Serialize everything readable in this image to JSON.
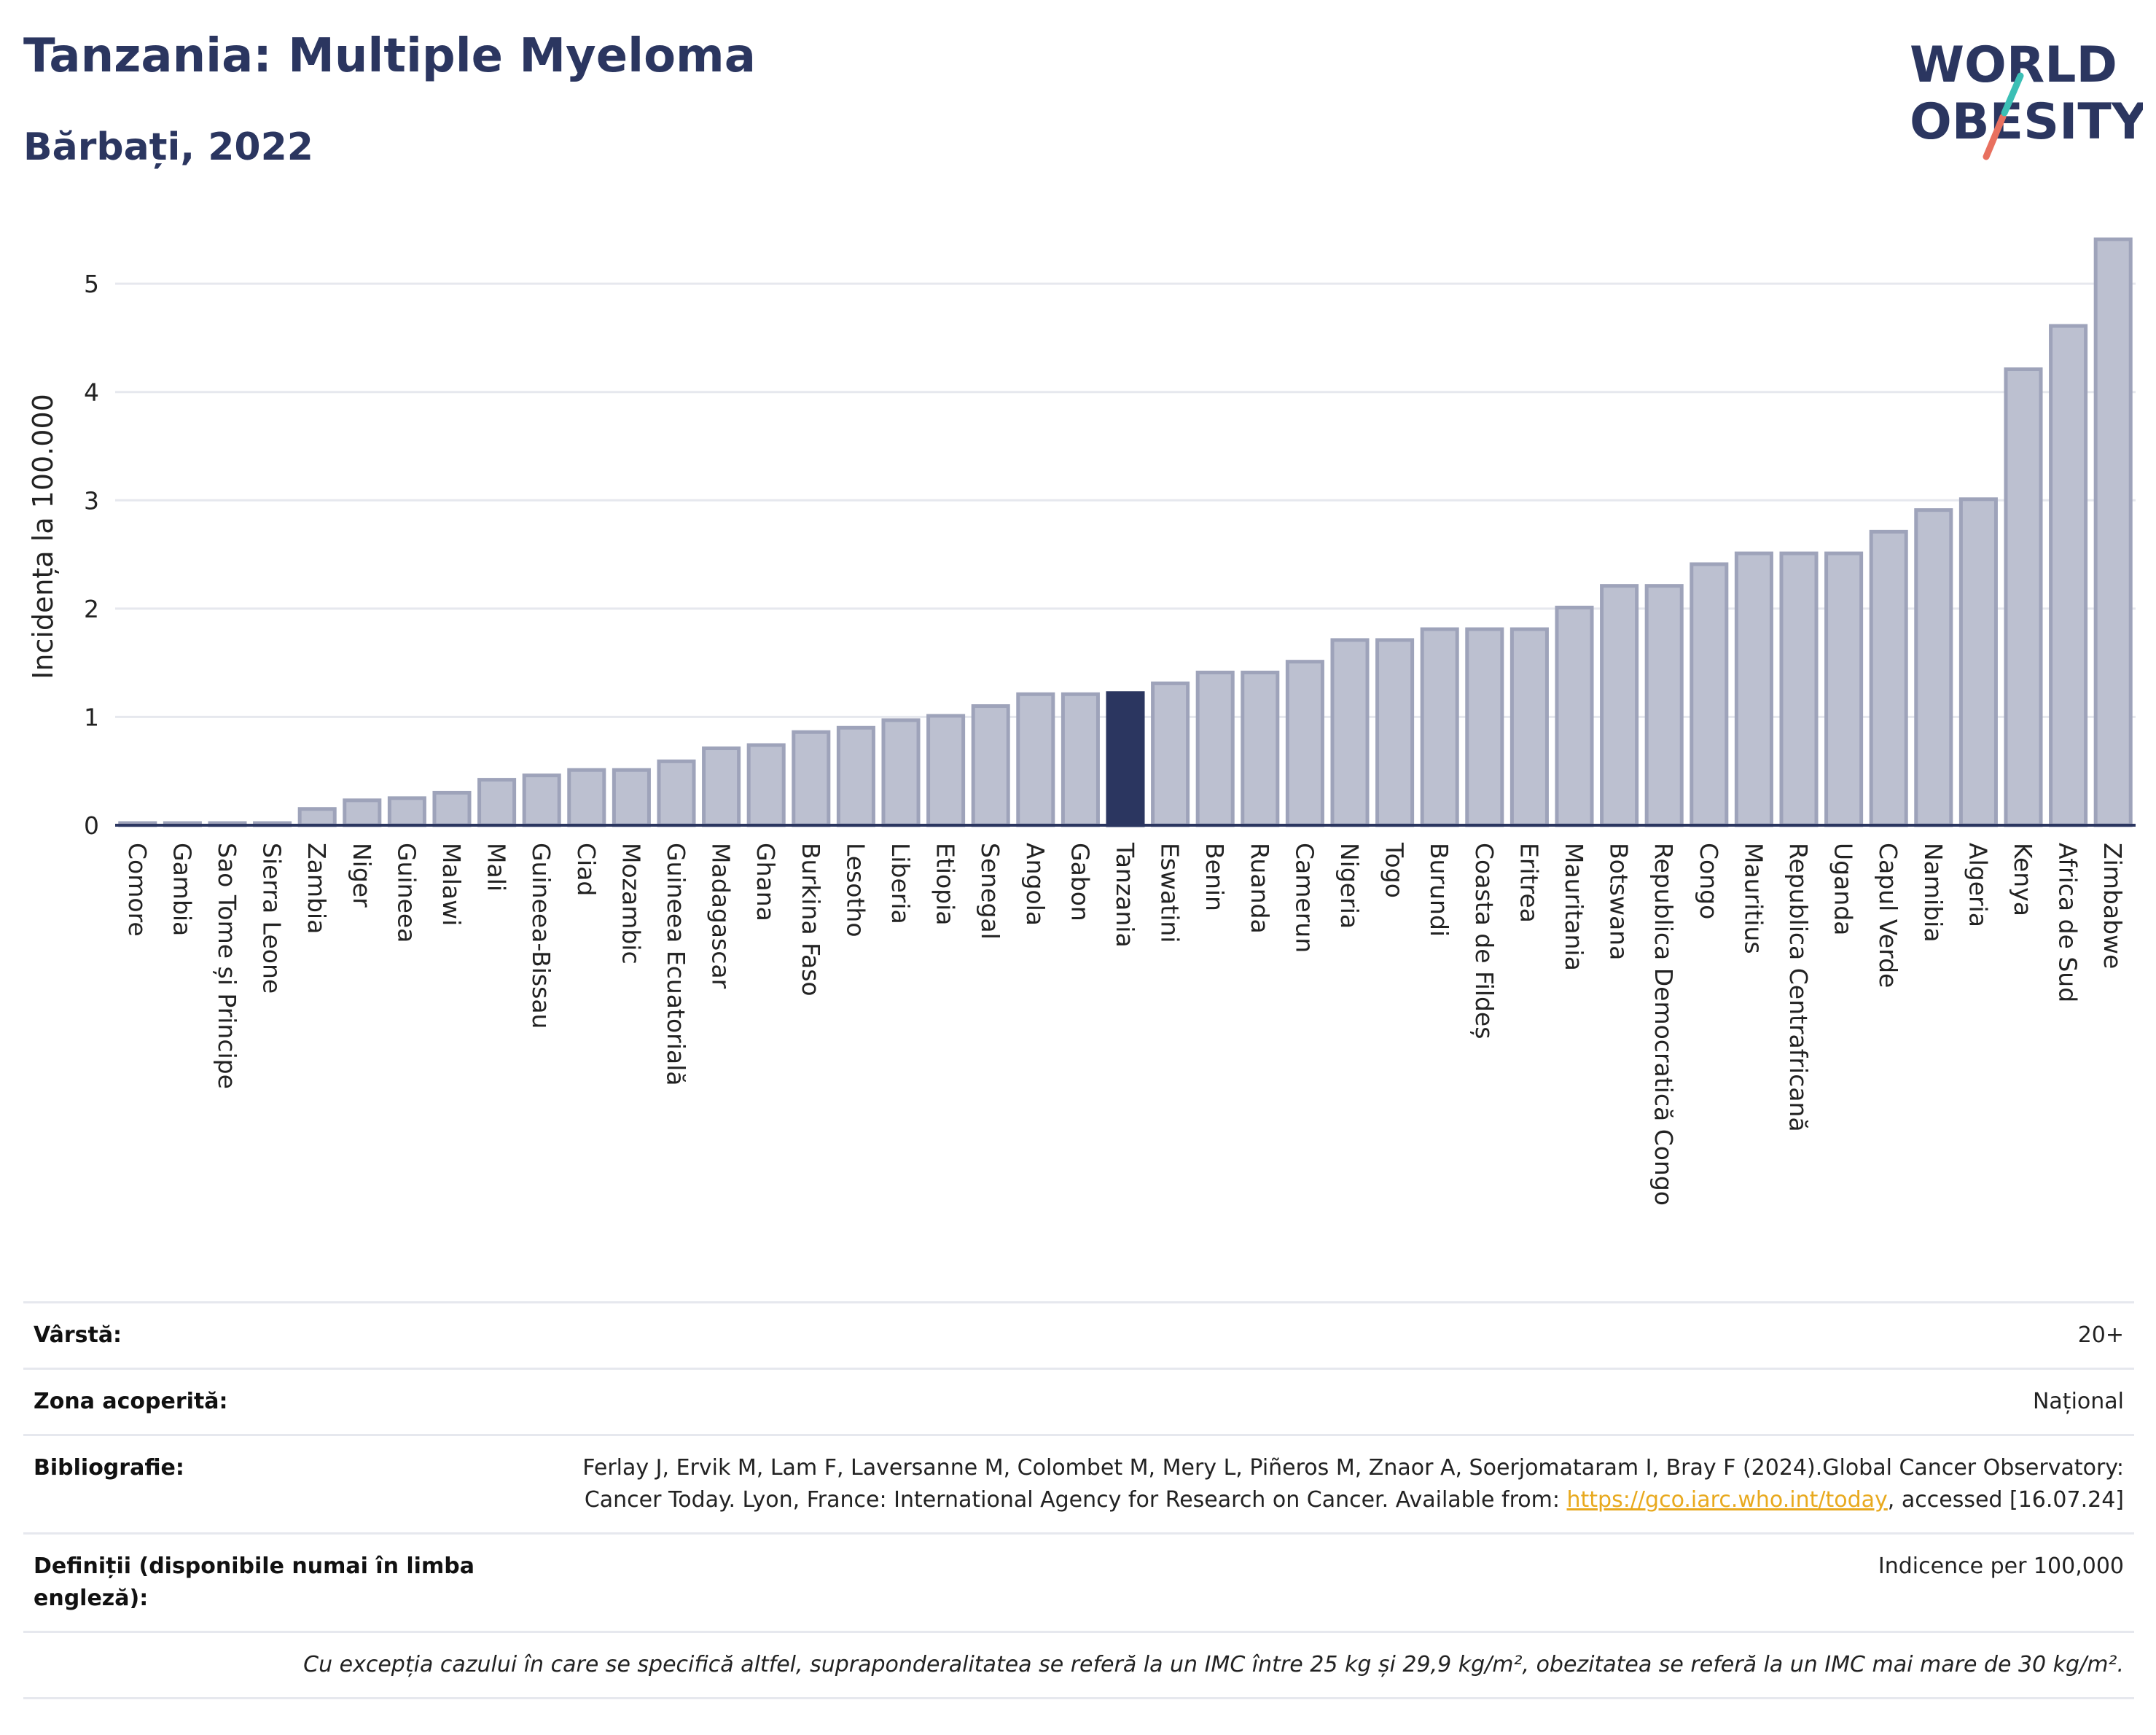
{
  "title": "Tanzania: Multiple Myeloma",
  "subtitle": "Bărbați, 2022",
  "logo": {
    "line1": "WORLD",
    "line2": "OBESITY"
  },
  "colors": {
    "bar": "#bcc0d0",
    "bar_border": "#9ea3ba",
    "highlight": "#2b3660",
    "title": "#2b3660",
    "grid": "#e6e8ee",
    "logo_teal": "#3bbfb5",
    "logo_coral": "#e8705f"
  },
  "chart_data": {
    "type": "bar",
    "title": "Tanzania: Multiple Myeloma",
    "subtitle": "Bărbați, 2022",
    "xlabel": "",
    "ylabel": "Incidența la 100.000",
    "ylim": [
      0,
      5.6
    ],
    "yticks": [
      0,
      1,
      2,
      3,
      4,
      5
    ],
    "grid": true,
    "highlight": "Tanzania",
    "categories": [
      "Comore",
      "Gambia",
      "Sao Tome și Principe",
      "Sierra Leone",
      "Zambia",
      "Niger",
      "Guineea",
      "Malawi",
      "Mali",
      "Guineea-Bissau",
      "Ciad",
      "Mozambic",
      "Guineea Ecuatorială",
      "Madagascar",
      "Ghana",
      "Burkina Faso",
      "Lesotho",
      "Liberia",
      "Etiopia",
      "Senegal",
      "Angola",
      "Gabon",
      "Tanzania",
      "Eswatini",
      "Benin",
      "Ruanda",
      "Camerun",
      "Nigeria",
      "Togo",
      "Burundi",
      "Coasta de Fildeș",
      "Eritrea",
      "Mauritania",
      "Botswana",
      "Republica Democratică Congo",
      "Congo",
      "Mauritius",
      "Republica Centrafricană",
      "Uganda",
      "Capul Verde",
      "Namibia",
      "Algeria",
      "Kenya",
      "Africa de Sud",
      "Zimbabwe"
    ],
    "values": [
      0.02,
      0.02,
      0.02,
      0.02,
      0.15,
      0.23,
      0.25,
      0.3,
      0.42,
      0.46,
      0.51,
      0.51,
      0.59,
      0.71,
      0.74,
      0.86,
      0.9,
      0.97,
      1.01,
      1.1,
      1.21,
      1.21,
      1.22,
      1.31,
      1.41,
      1.41,
      1.51,
      1.71,
      1.71,
      1.81,
      1.81,
      1.81,
      2.01,
      2.21,
      2.21,
      2.41,
      2.51,
      2.51,
      2.51,
      2.71,
      2.91,
      3.01,
      4.21,
      4.61,
      5.41
    ]
  },
  "info": {
    "age_label": "Vârstă:",
    "age_value": "20+",
    "coverage_label": "Zona acoperită:",
    "coverage_value": "Național",
    "biblio_label": "Bibliografie:",
    "biblio_text_1": "Ferlay J, Ervik M, Lam F, Laversanne M, Colombet M, Mery L, Piñeros M, Znaor A, Soerjomataram I, Bray F (2024).Global Cancer Observatory: Cancer Today. Lyon, France: International Agency for Research on Cancer. Available from: ",
    "biblio_link": "https://gco.iarc.who.int/today",
    "biblio_text_2": ", accessed [16.07.24]",
    "definitions_label": "Definiții (disponibile numai în limba engleză):",
    "definitions_value": "Indicence per 100,000",
    "note": "Cu excepția cazului în care se specifică altfel, supraponderalitatea se referă la un IMC între 25 kg și 29,9 kg/m², obezitatea se referă la un IMC mai mare de 30 kg/m²."
  }
}
